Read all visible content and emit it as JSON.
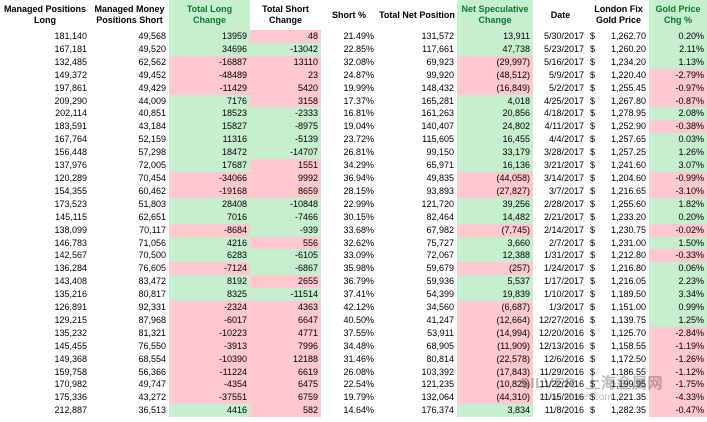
{
  "headers": [
    "Managed Positions Long",
    "Managed Money Positions Short",
    "Total Long Change",
    "Total Short Change",
    "Short %",
    "Total Net Position",
    "Net Speculative Change",
    "Date",
    "London Fix Gold Price",
    "Gold Price Chg %"
  ],
  "currency_symbol": "$",
  "colors": {
    "positive_fill": "#c6efce",
    "negative_fill": "#ffc7ce",
    "header_text": "#0a7a2a"
  },
  "rows": [
    {
      "long": "181,140",
      "short": "49,568",
      "lchg": "13959",
      "schg": "48",
      "pct": "21.49%",
      "net": "131,572",
      "spec": "13,911",
      "date": "5/30/2017",
      "price": "1,262.70",
      "gpct": "0.20%"
    },
    {
      "long": "167,181",
      "short": "49,520",
      "lchg": "34696",
      "schg": "-13042",
      "pct": "22.85%",
      "net": "117,661",
      "spec": "47,738",
      "date": "5/23/2017",
      "price": "1,260.20",
      "gpct": "2.11%"
    },
    {
      "long": "132,485",
      "short": "62,562",
      "lchg": "-16887",
      "schg": "13110",
      "pct": "32.08%",
      "net": "69,923",
      "spec": "(29,997)",
      "date": "5/16/2017",
      "price": "1,234.20",
      "gpct": "1.13%"
    },
    {
      "long": "149,372",
      "short": "49,452",
      "lchg": "-48489",
      "schg": "23",
      "pct": "24.87%",
      "net": "99,920",
      "spec": "(48,512)",
      "date": "5/9/2017",
      "price": "1,220.40",
      "gpct": "-2.79%"
    },
    {
      "long": "197,861",
      "short": "49,429",
      "lchg": "-11429",
      "schg": "5420",
      "pct": "19.99%",
      "net": "148,432",
      "spec": "(16,849)",
      "date": "5/2/2017",
      "price": "1,255.45",
      "gpct": "-0.97%"
    },
    {
      "long": "209,290",
      "short": "44,009",
      "lchg": "7176",
      "schg": "3158",
      "pct": "17.37%",
      "net": "165,281",
      "spec": "4,018",
      "date": "4/25/2017",
      "price": "1,267.80",
      "gpct": "-0.87%"
    },
    {
      "long": "202,114",
      "short": "40,851",
      "lchg": "18523",
      "schg": "-2333",
      "pct": "16.81%",
      "net": "161,263",
      "spec": "20,856",
      "date": "4/18/2017",
      "price": "1,278.95",
      "gpct": "2.08%"
    },
    {
      "long": "183,591",
      "short": "43,184",
      "lchg": "15827",
      "schg": "-8975",
      "pct": "19.04%",
      "net": "140,407",
      "spec": "24,802",
      "date": "4/11/2017",
      "price": "1,252.90",
      "gpct": "-0.38%"
    },
    {
      "long": "167,764",
      "short": "52,159",
      "lchg": "11316",
      "schg": "-5139",
      "pct": "23.72%",
      "net": "115,605",
      "spec": "16,455",
      "date": "4/4/2017",
      "price": "1,257.65",
      "gpct": "0.03%"
    },
    {
      "long": "156,448",
      "short": "57,298",
      "lchg": "18472",
      "schg": "-14707",
      "pct": "26.81%",
      "net": "99,150",
      "spec": "33,179",
      "date": "3/28/2017",
      "price": "1,257.25",
      "gpct": "1.26%"
    },
    {
      "long": "137,976",
      "short": "72,005",
      "lchg": "17687",
      "schg": "1551",
      "pct": "34.29%",
      "net": "65,971",
      "spec": "16,136",
      "date": "3/21/2017",
      "price": "1,241.60",
      "gpct": "3.07%"
    },
    {
      "long": "120,289",
      "short": "70,454",
      "lchg": "-34066",
      "schg": "9992",
      "pct": "36.94%",
      "net": "49,835",
      "spec": "(44,058)",
      "date": "3/14/2017",
      "price": "1,204.60",
      "gpct": "-0.99%"
    },
    {
      "long": "154,355",
      "short": "60,462",
      "lchg": "-19168",
      "schg": "8659",
      "pct": "28.15%",
      "net": "93,893",
      "spec": "(27,827)",
      "date": "3/7/2017",
      "price": "1,216.65",
      "gpct": "-3.10%"
    },
    {
      "long": "173,523",
      "short": "51,803",
      "lchg": "28408",
      "schg": "-10848",
      "pct": "22.99%",
      "net": "121,720",
      "spec": "39,256",
      "date": "2/28/2017",
      "price": "1,255.60",
      "gpct": "1.82%"
    },
    {
      "long": "145,115",
      "short": "62,651",
      "lchg": "7016",
      "schg": "-7466",
      "pct": "30.15%",
      "net": "82,464",
      "spec": "14,482",
      "date": "2/21/2017",
      "price": "1,233.20",
      "gpct": "0.20%"
    },
    {
      "long": "138,099",
      "short": "70,117",
      "lchg": "-8684",
      "schg": "-939",
      "pct": "33.68%",
      "net": "67,982",
      "spec": "(7,745)",
      "date": "2/14/2017",
      "price": "1,230.75",
      "gpct": "-0.02%"
    },
    {
      "long": "146,783",
      "short": "71,056",
      "lchg": "4216",
      "schg": "556",
      "pct": "32.62%",
      "net": "75,727",
      "spec": "3,660",
      "date": "2/7/2017",
      "price": "1,231.00",
      "gpct": "1.50%"
    },
    {
      "long": "142,567",
      "short": "70,500",
      "lchg": "6283",
      "schg": "-6105",
      "pct": "33.09%",
      "net": "72,067",
      "spec": "12,388",
      "date": "1/31/2017",
      "price": "1,212.80",
      "gpct": "-0.33%"
    },
    {
      "long": "136,284",
      "short": "76,605",
      "lchg": "-7124",
      "schg": "-6867",
      "pct": "35.98%",
      "net": "59,679",
      "spec": "(257)",
      "date": "1/24/2017",
      "price": "1,216.80",
      "gpct": "0.06%"
    },
    {
      "long": "143,408",
      "short": "83,472",
      "lchg": "8192",
      "schg": "2655",
      "pct": "36.79%",
      "net": "59,936",
      "spec": "5,537",
      "date": "1/17/2017",
      "price": "1,216.05",
      "gpct": "2.23%"
    },
    {
      "long": "135,216",
      "short": "80,817",
      "lchg": "8325",
      "schg": "-11514",
      "pct": "37.41%",
      "net": "54,399",
      "spec": "19,839",
      "date": "1/10/2017",
      "price": "1,189.50",
      "gpct": "3.34%"
    },
    {
      "long": "126,891",
      "short": "92,331",
      "lchg": "-2324",
      "schg": "4363",
      "pct": "42.12%",
      "net": "34,560",
      "spec": "(6,687)",
      "date": "1/3/2017",
      "price": "1,151.00",
      "gpct": "0.99%"
    },
    {
      "long": "129,215",
      "short": "87,968",
      "lchg": "-6017",
      "schg": "6647",
      "pct": "40.50%",
      "net": "41,247",
      "spec": "(12,664)",
      "date": "12/27/2016",
      "price": "1,139.75",
      "gpct": "1.25%"
    },
    {
      "long": "135,232",
      "short": "81,321",
      "lchg": "-10223",
      "schg": "4771",
      "pct": "37.55%",
      "net": "53,911",
      "spec": "(14,994)",
      "date": "12/20/2016",
      "price": "1,125.70",
      "gpct": "-2.84%"
    },
    {
      "long": "145,455",
      "short": "76,550",
      "lchg": "-3913",
      "schg": "7996",
      "pct": "34.48%",
      "net": "68,905",
      "spec": "(11,909)",
      "date": "12/13/2016",
      "price": "1,158.55",
      "gpct": "-1.19%"
    },
    {
      "long": "149,368",
      "short": "68,554",
      "lchg": "-10390",
      "schg": "12188",
      "pct": "31.46%",
      "net": "80,814",
      "spec": "(22,578)",
      "date": "12/6/2016",
      "price": "1,172.50",
      "gpct": "-1.26%"
    },
    {
      "long": "159,758",
      "short": "56,366",
      "lchg": "-11224",
      "schg": "6619",
      "pct": "26.08%",
      "net": "103,392",
      "spec": "(17,843)",
      "date": "11/29/2016",
      "price": "1,186.55",
      "gpct": "-1.12%"
    },
    {
      "long": "170,982",
      "short": "49,747",
      "lchg": "-4354",
      "schg": "6475",
      "pct": "22.54%",
      "net": "121,235",
      "spec": "(10,829)",
      "date": "11/22/2016",
      "price": "1,199.95",
      "gpct": "-1.75%"
    },
    {
      "long": "175,336",
      "short": "43,272",
      "lchg": "-37551",
      "schg": "6759",
      "pct": "19.79%",
      "net": "132,064",
      "spec": "(44,310)",
      "date": "11/15/2016",
      "price": "1,221.35",
      "gpct": "-4.33%"
    },
    {
      "long": "212,887",
      "short": "36,513",
      "lchg": "4416",
      "schg": "582",
      "pct": "14.64%",
      "net": "176,374",
      "spec": "3,834",
      "date": "11/8/2016",
      "price": "1,282.35",
      "gpct": "-0.47%"
    }
  ]
}
